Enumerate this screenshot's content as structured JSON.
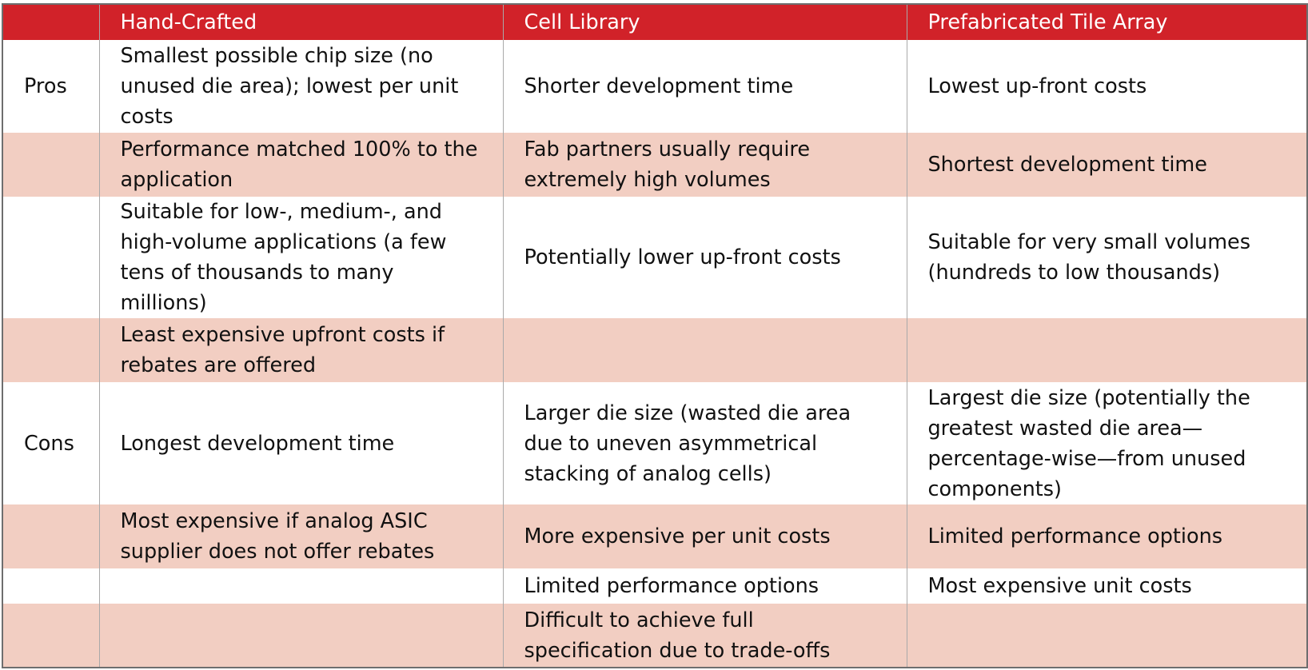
{
  "table": {
    "headers": [
      "",
      "Hand-Crafted",
      "Cell Library",
      "Prefabricated Tile Array"
    ],
    "rows": [
      {
        "label": "Pros",
        "cells": [
          "Smallest possible chip size (no unused die area); lowest per unit costs",
          "Shorter development time",
          "Lowest up-front costs"
        ]
      },
      {
        "label": "",
        "cells": [
          "Performance matched 100% to the application",
          "Fab partners usually require extremely high volumes",
          "Shortest development time"
        ]
      },
      {
        "label": "",
        "cells": [
          "Suitable for low-, medium-, and high-volume applications (a few tens of thousands to many millions)",
          "Potentially lower up-front costs",
          "Suitable for very small volumes (hundreds to low thousands)"
        ]
      },
      {
        "label": "",
        "cells": [
          "Least expensive upfront costs if rebates are offered",
          "",
          ""
        ]
      },
      {
        "label": "Cons",
        "cells": [
          "Longest development time",
          "Larger die size (wasted die area due to uneven asymmetrical stacking of analog cells)",
          "Largest die size (potentially the greatest wasted die area—percentage-wise—from unused components)"
        ]
      },
      {
        "label": "",
        "cells": [
          "Most expensive if analog ASIC supplier does not offer rebates",
          "More expensive per unit costs",
          "Limited performance options"
        ]
      },
      {
        "label": "",
        "cells": [
          "",
          "Limited performance options",
          "Most expensive unit costs"
        ]
      },
      {
        "label": "",
        "cells": [
          "",
          "Difficult to achieve full specification due to trade-offs",
          ""
        ]
      }
    ]
  },
  "colors": {
    "header_bg": "#d12229",
    "header_text": "#ffffff",
    "shaded_row": "#f2cec2",
    "plain_row": "#ffffff"
  }
}
